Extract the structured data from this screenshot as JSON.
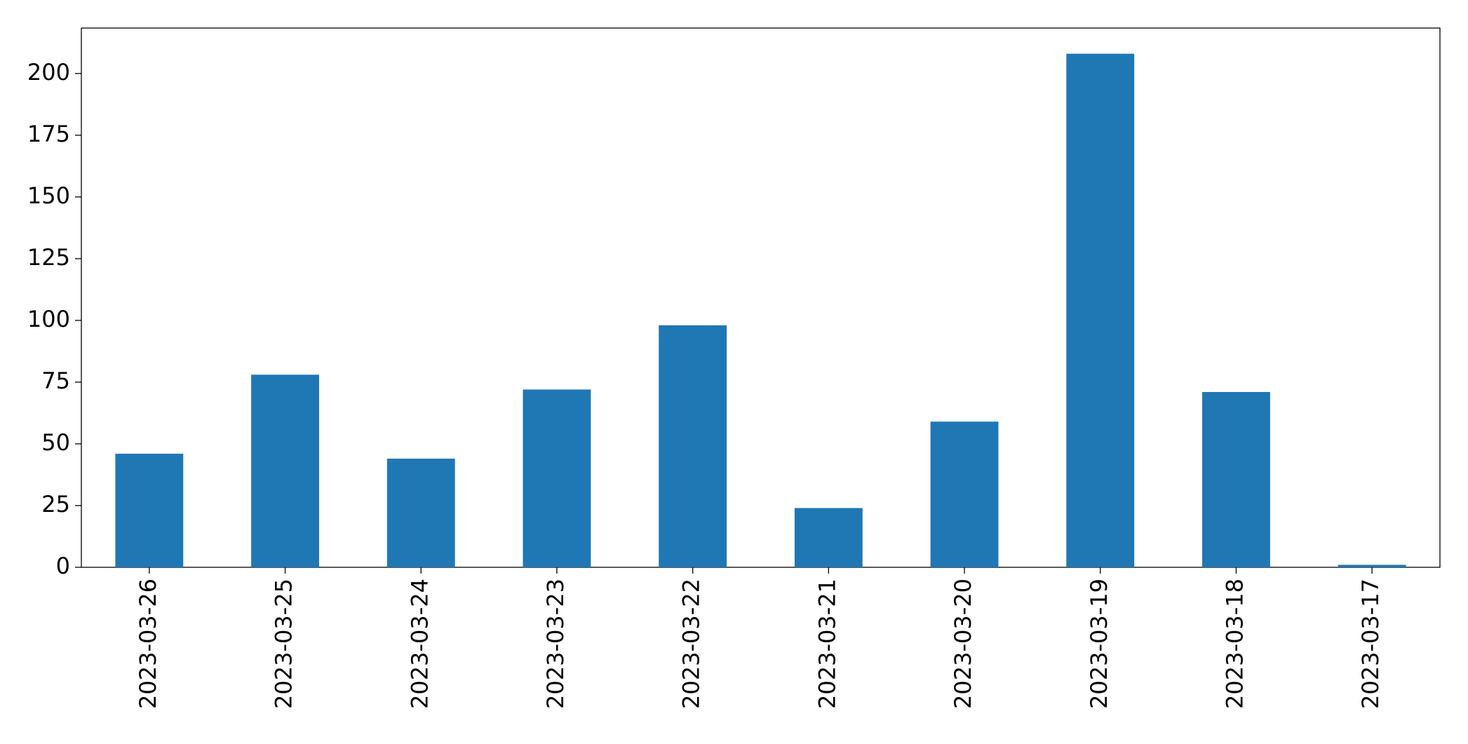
{
  "chart_data": {
    "type": "bar",
    "categories": [
      "2023-03-26",
      "2023-03-25",
      "2023-03-24",
      "2023-03-23",
      "2023-03-22",
      "2023-03-21",
      "2023-03-20",
      "2023-03-19",
      "2023-03-18",
      "2023-03-17"
    ],
    "values": [
      46,
      78,
      44,
      72,
      98,
      24,
      59,
      208,
      71,
      1
    ],
    "color": "#1f77b4",
    "ylim": [
      0,
      218.4
    ],
    "yticks": [
      0,
      25,
      50,
      75,
      100,
      125,
      150,
      175,
      200
    ],
    "grid": false
  }
}
